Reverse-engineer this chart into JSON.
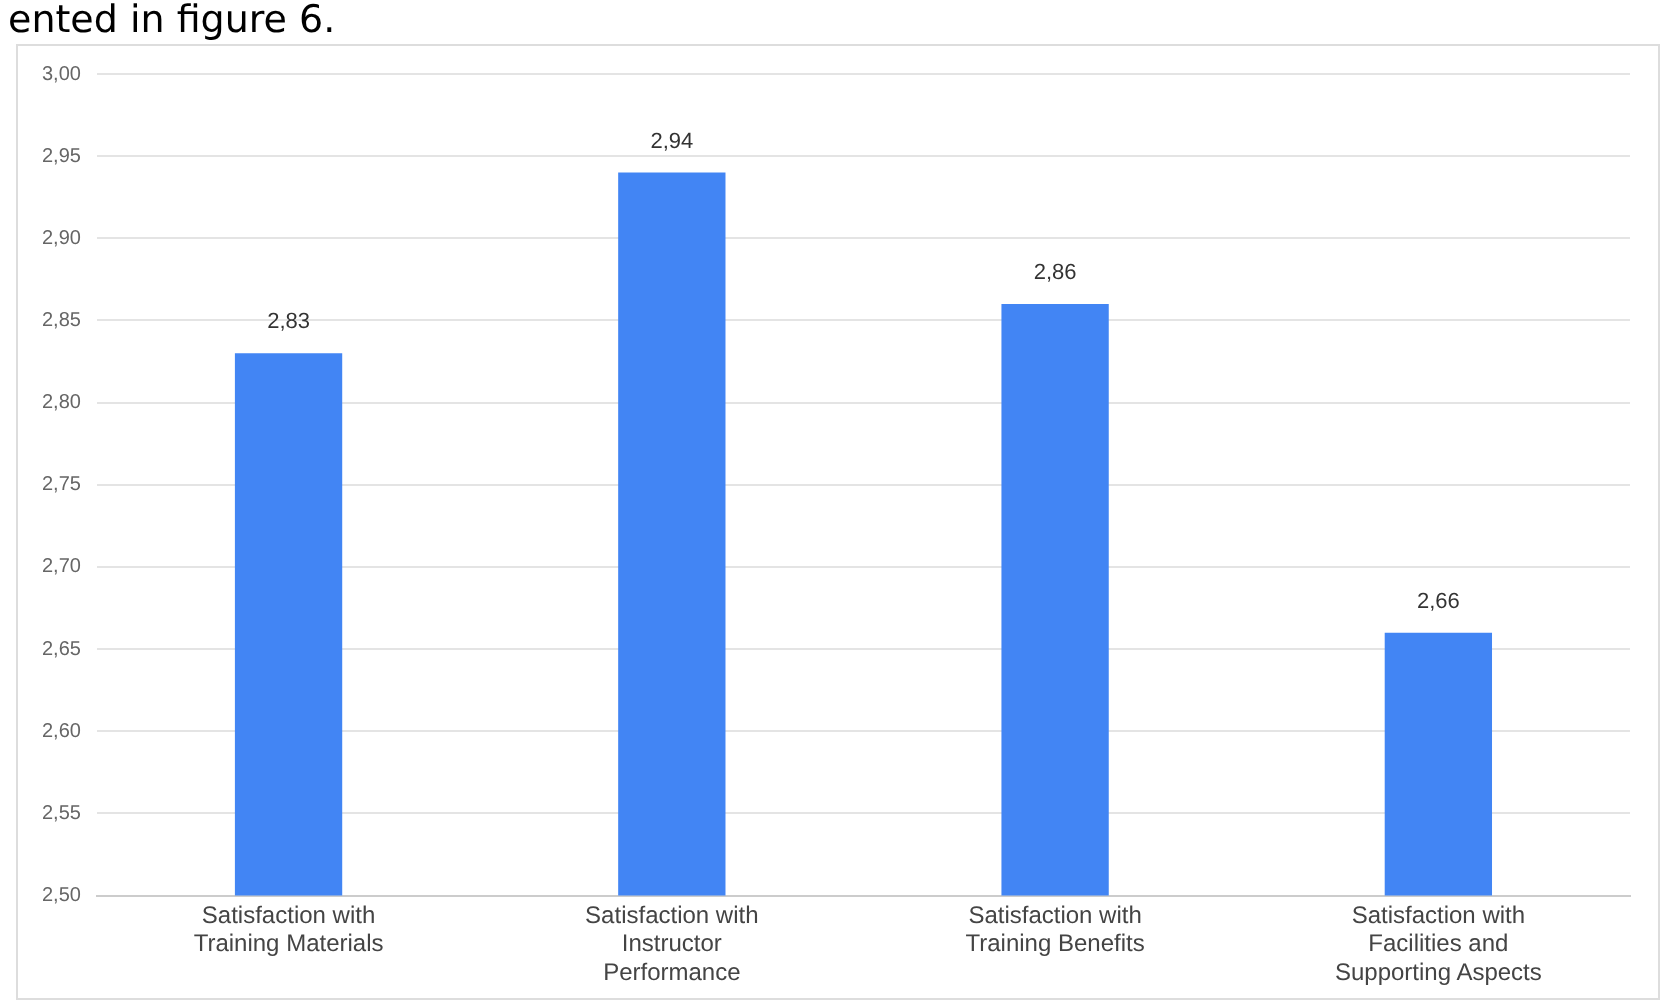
{
  "chart_data": {
    "type": "bar",
    "annotations": [
      "ented in figure 6."
    ],
    "categories": [
      "Satisfaction with Training Materials",
      "Satisfaction with Instructor Performance",
      "Satisfaction with Training Benefits",
      "Satisfaction with Facilities and Supporting Aspects"
    ],
    "values": [
      2.83,
      2.94,
      2.86,
      2.66
    ],
    "value_labels": [
      "2,83",
      "2,94",
      "2,86",
      "2,66"
    ],
    "color": "#4285f4",
    "ylim": [
      2.5,
      3.0
    ],
    "yticks": [
      {
        "value": 2.5,
        "label": "2,50"
      },
      {
        "value": 2.55,
        "label": "2,55"
      },
      {
        "value": 2.6,
        "label": "2,60"
      },
      {
        "value": 2.65,
        "label": "2,65"
      },
      {
        "value": 2.7,
        "label": "2,70"
      },
      {
        "value": 2.75,
        "label": "2,75"
      },
      {
        "value": 2.8,
        "label": "2,80"
      },
      {
        "value": 2.85,
        "label": "2,85"
      },
      {
        "value": 2.9,
        "label": "2,90"
      },
      {
        "value": 2.95,
        "label": "2,95"
      },
      {
        "value": 3.0,
        "label": "3,00"
      }
    ],
    "grid": "y"
  }
}
